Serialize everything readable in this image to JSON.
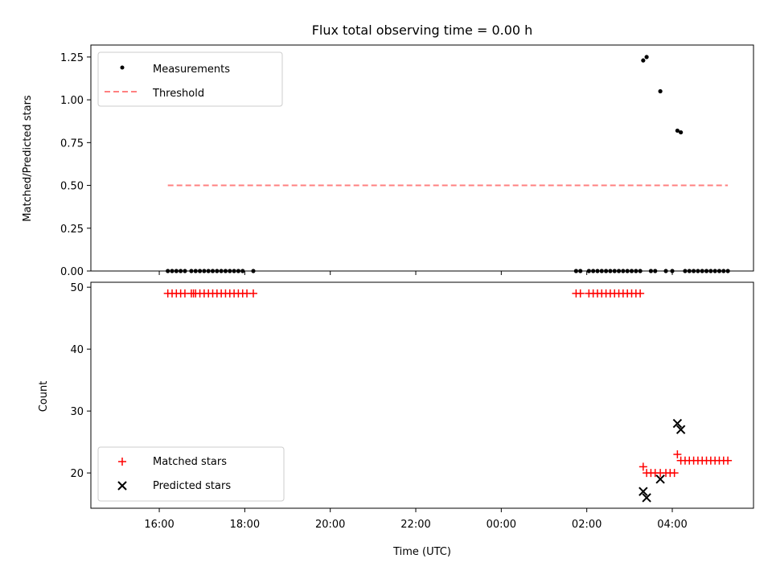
{
  "chart_data": [
    {
      "type": "scatter",
      "title": "Flux total observing time = 0.00 h",
      "xlabel": "",
      "ylabel": "Matched/Predicted stars",
      "xlim": [
        -1.6,
        13.9
      ],
      "ylim": [
        0,
        1.32
      ],
      "x_ticks": [
        0,
        2,
        4,
        6,
        8,
        10,
        12
      ],
      "y_ticks": [
        {
          "v": 0.0,
          "label": "0.00"
        },
        {
          "v": 0.25,
          "label": "0.25"
        },
        {
          "v": 0.5,
          "label": "0.50"
        },
        {
          "v": 0.75,
          "label": "0.75"
        },
        {
          "v": 1.0,
          "label": "1.00"
        },
        {
          "v": 1.25,
          "label": "1.25"
        }
      ],
      "legend": {
        "position": "upper-left",
        "entries": [
          "Measurements",
          "Threshold"
        ]
      },
      "series": [
        {
          "name": "Measurements",
          "marker": "dot",
          "color": "#000000",
          "points": [
            [
              0.2,
              0
            ],
            [
              0.3,
              0
            ],
            [
              0.4,
              0
            ],
            [
              0.5,
              0
            ],
            [
              0.6,
              0
            ],
            [
              0.75,
              0
            ],
            [
              0.85,
              0
            ],
            [
              0.95,
              0
            ],
            [
              1.05,
              0
            ],
            [
              1.15,
              0
            ],
            [
              1.25,
              0
            ],
            [
              1.35,
              0
            ],
            [
              1.45,
              0
            ],
            [
              1.55,
              0
            ],
            [
              1.65,
              0
            ],
            [
              1.75,
              0
            ],
            [
              1.85,
              0
            ],
            [
              1.95,
              0
            ],
            [
              2.2,
              0
            ],
            [
              9.75,
              0
            ],
            [
              9.85,
              0
            ],
            [
              10.05,
              0
            ],
            [
              10.15,
              0
            ],
            [
              10.25,
              0
            ],
            [
              10.35,
              0
            ],
            [
              10.45,
              0
            ],
            [
              10.55,
              0
            ],
            [
              10.65,
              0
            ],
            [
              10.75,
              0
            ],
            [
              10.85,
              0
            ],
            [
              10.95,
              0
            ],
            [
              11.05,
              0
            ],
            [
              11.15,
              0
            ],
            [
              11.25,
              0
            ],
            [
              11.32,
              1.23
            ],
            [
              11.4,
              1.25
            ],
            [
              11.5,
              0
            ],
            [
              11.6,
              0
            ],
            [
              11.72,
              1.05
            ],
            [
              11.85,
              0
            ],
            [
              12.0,
              0
            ],
            [
              12.12,
              0.82
            ],
            [
              12.2,
              0.81
            ],
            [
              12.3,
              0
            ],
            [
              12.4,
              0
            ],
            [
              12.5,
              0
            ],
            [
              12.6,
              0
            ],
            [
              12.7,
              0
            ],
            [
              12.8,
              0
            ],
            [
              12.9,
              0
            ],
            [
              13.0,
              0
            ],
            [
              13.1,
              0
            ],
            [
              13.2,
              0
            ],
            [
              13.3,
              0
            ]
          ]
        },
        {
          "name": "Threshold",
          "style": "dashed",
          "color": "#ff8080",
          "x": [
            0.2,
            13.3
          ],
          "y": [
            0.5,
            0.5
          ]
        }
      ]
    },
    {
      "type": "scatter",
      "title": "",
      "xlabel": "Time (UTC)",
      "ylabel": "Count",
      "xlim": [
        -1.6,
        13.9
      ],
      "ylim": [
        14.3,
        50.8
      ],
      "x_ticks": [
        {
          "v": 0,
          "label": "16:00"
        },
        {
          "v": 2,
          "label": "18:00"
        },
        {
          "v": 4,
          "label": "20:00"
        },
        {
          "v": 6,
          "label": "22:00"
        },
        {
          "v": 8,
          "label": "00:00"
        },
        {
          "v": 10,
          "label": "02:00"
        },
        {
          "v": 12,
          "label": "04:00"
        }
      ],
      "y_ticks": [
        {
          "v": 20,
          "label": "20"
        },
        {
          "v": 30,
          "label": "30"
        },
        {
          "v": 40,
          "label": "40"
        },
        {
          "v": 50,
          "label": "50"
        }
      ],
      "legend": {
        "position": "lower-left",
        "entries": [
          "Matched stars",
          "Predicted stars"
        ]
      },
      "series": [
        {
          "name": "Matched stars",
          "marker": "plus",
          "color": "#ff0000",
          "points": [
            [
              0.2,
              49
            ],
            [
              0.3,
              49
            ],
            [
              0.4,
              49
            ],
            [
              0.5,
              49
            ],
            [
              0.6,
              49
            ],
            [
              0.75,
              49
            ],
            [
              0.8,
              49
            ],
            [
              0.85,
              49
            ],
            [
              0.95,
              49
            ],
            [
              1.05,
              49
            ],
            [
              1.15,
              49
            ],
            [
              1.25,
              49
            ],
            [
              1.35,
              49
            ],
            [
              1.45,
              49
            ],
            [
              1.55,
              49
            ],
            [
              1.65,
              49
            ],
            [
              1.75,
              49
            ],
            [
              1.85,
              49
            ],
            [
              1.95,
              49
            ],
            [
              2.05,
              49
            ],
            [
              2.2,
              49
            ],
            [
              9.75,
              49
            ],
            [
              9.85,
              49
            ],
            [
              10.05,
              49
            ],
            [
              10.15,
              49
            ],
            [
              10.25,
              49
            ],
            [
              10.35,
              49
            ],
            [
              10.45,
              49
            ],
            [
              10.55,
              49
            ],
            [
              10.65,
              49
            ],
            [
              10.75,
              49
            ],
            [
              10.85,
              49
            ],
            [
              10.95,
              49
            ],
            [
              11.05,
              49
            ],
            [
              11.15,
              49
            ],
            [
              11.25,
              49
            ],
            [
              11.32,
              21
            ],
            [
              11.4,
              20
            ],
            [
              11.5,
              20
            ],
            [
              11.6,
              20
            ],
            [
              11.72,
              20
            ],
            [
              11.85,
              20
            ],
            [
              11.95,
              20
            ],
            [
              12.05,
              20
            ],
            [
              12.12,
              23
            ],
            [
              12.2,
              22
            ],
            [
              12.3,
              22
            ],
            [
              12.4,
              22
            ],
            [
              12.5,
              22
            ],
            [
              12.6,
              22
            ],
            [
              12.7,
              22
            ],
            [
              12.8,
              22
            ],
            [
              12.9,
              22
            ],
            [
              13.0,
              22
            ],
            [
              13.1,
              22
            ],
            [
              13.2,
              22
            ],
            [
              13.3,
              22
            ]
          ]
        },
        {
          "name": "Predicted stars",
          "marker": "x",
          "color": "#000000",
          "points": [
            [
              11.32,
              17
            ],
            [
              11.4,
              16
            ],
            [
              11.72,
              19
            ],
            [
              12.12,
              28
            ],
            [
              12.2,
              27
            ]
          ]
        }
      ]
    }
  ]
}
